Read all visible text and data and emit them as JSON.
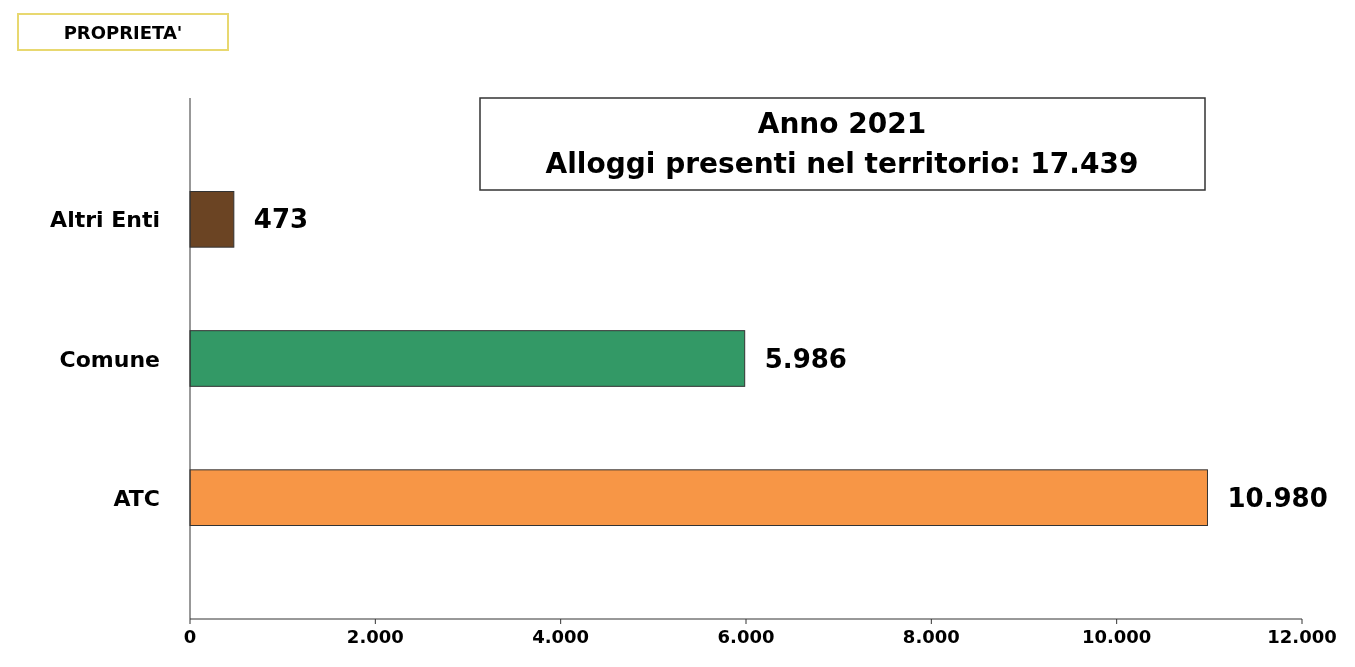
{
  "chart_data": {
    "type": "bar",
    "orientation": "horizontal",
    "title": "PROPRIETA'",
    "categories": [
      "Altri Enti",
      "Comune",
      "ATC"
    ],
    "values": [
      473,
      5986,
      10980
    ],
    "colors": [
      "#6b4423",
      "#339966",
      "#f79646"
    ],
    "value_labels": [
      "473",
      "5.986",
      "10.980"
    ],
    "xlim": [
      0,
      12000
    ],
    "xticks": [
      0,
      {
        "value": 2000,
        "label": "2.000"
      },
      {
        "value": 4000,
        "label": "4.000"
      },
      {
        "value": 6000,
        "label": "6.000"
      },
      {
        "value": 8000,
        "label": "8.000"
      },
      {
        "value": 10000,
        "label": "10.000"
      },
      {
        "value": 12000,
        "label": "12.000"
      }
    ],
    "annotations": [
      "Anno 2021",
      "Alloggi presenti nel territorio: 17.439"
    ]
  }
}
